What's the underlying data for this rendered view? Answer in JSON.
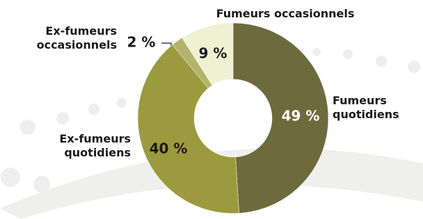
{
  "chart_data": {
    "type": "donut",
    "categories": [
      "Fumeurs quotidiens",
      "Ex-fumeurs quotidiens",
      "Ex-fumeurs occasionnels",
      "Fumeurs occasionnels"
    ],
    "values": [
      49,
      40,
      2,
      9
    ],
    "value_labels": [
      "49 %",
      "40 %",
      "2 %",
      "9 %"
    ],
    "colors": [
      "#6e6a3e",
      "#9c9a3e",
      "#b3b46c",
      "#eef2d2"
    ]
  }
}
